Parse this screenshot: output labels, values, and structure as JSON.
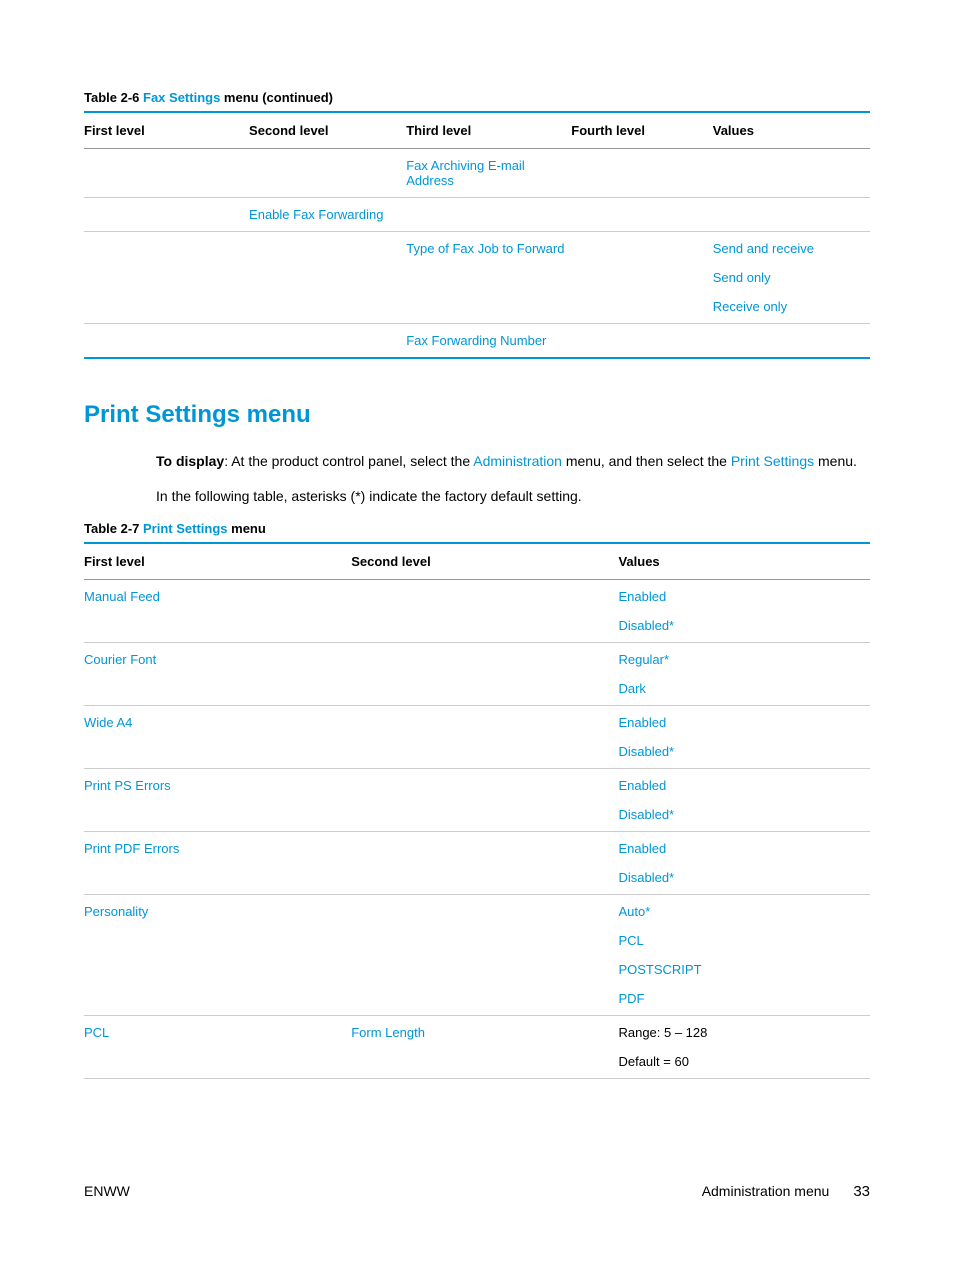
{
  "colors": {
    "accent": "#0096d6",
    "text": "#000000",
    "border_light": "#cccccc",
    "border_mid": "#999999"
  },
  "table1": {
    "caption_prefix": "Table 2-6  ",
    "caption_blue": "Fax Settings",
    "caption_suffix": " menu (continued)",
    "headers": [
      "First level",
      "Second level",
      "Third level",
      "Fourth level",
      "Values"
    ],
    "rows": [
      {
        "c1": "",
        "c2": "",
        "c3": "Fax Archiving E-mail Address",
        "c4": "",
        "c5": []
      },
      {
        "c1": "",
        "c2": "Enable Fax Forwarding",
        "c3": "",
        "c4": "",
        "c5": []
      },
      {
        "c1": "",
        "c2": "",
        "c3": "Type of Fax Job to Forward",
        "c4": "",
        "c5": [
          "Send and receive",
          "Send only",
          "Receive only"
        ]
      },
      {
        "c1": "",
        "c2": "",
        "c3": "Fax Forwarding Number",
        "c4": "",
        "c5": []
      }
    ]
  },
  "section": {
    "heading": "Print Settings menu",
    "para1_bold": "To display",
    "para1_a": ": At the product control panel, select the ",
    "para1_link1": "Administration",
    "para1_b": " menu, and then select the ",
    "para1_link2": "Print Settings",
    "para1_c": " menu.",
    "para2": "In the following table, asterisks (*) indicate the factory default setting."
  },
  "table2": {
    "caption_prefix": "Table 2-7  ",
    "caption_blue": "Print Settings",
    "caption_suffix": " menu",
    "headers": [
      "First level",
      "Second level",
      "Values"
    ],
    "rows": [
      {
        "c1": "Manual Feed",
        "c2": "",
        "c3": [
          {
            "t": "Enabled",
            "l": true
          },
          {
            "t": "Disabled*",
            "l": true
          }
        ]
      },
      {
        "c1": "Courier Font",
        "c2": "",
        "c3": [
          {
            "t": "Regular*",
            "l": true
          },
          {
            "t": "Dark",
            "l": true
          }
        ]
      },
      {
        "c1": "Wide A4",
        "c2": "",
        "c3": [
          {
            "t": "Enabled",
            "l": true
          },
          {
            "t": "Disabled*",
            "l": true
          }
        ]
      },
      {
        "c1": "Print PS Errors",
        "c2": "",
        "c3": [
          {
            "t": "Enabled",
            "l": true
          },
          {
            "t": "Disabled*",
            "l": true
          }
        ]
      },
      {
        "c1": "Print PDF Errors",
        "c2": "",
        "c3": [
          {
            "t": "Enabled",
            "l": true
          },
          {
            "t": "Disabled*",
            "l": true
          }
        ]
      },
      {
        "c1": "Personality",
        "c2": "",
        "c3": [
          {
            "t": "Auto*",
            "l": true
          },
          {
            "t": "PCL",
            "l": true
          },
          {
            "t": "POSTSCRIPT",
            "l": true
          },
          {
            "t": "PDF",
            "l": true
          }
        ]
      },
      {
        "c1": "PCL",
        "c2": "Form Length",
        "c3": [
          {
            "t": "Range: 5 – 128",
            "l": false
          },
          {
            "t": "Default = 60",
            "l": false
          }
        ]
      }
    ]
  },
  "footer": {
    "left": "ENWW",
    "center": "Administration menu",
    "page": "33"
  }
}
